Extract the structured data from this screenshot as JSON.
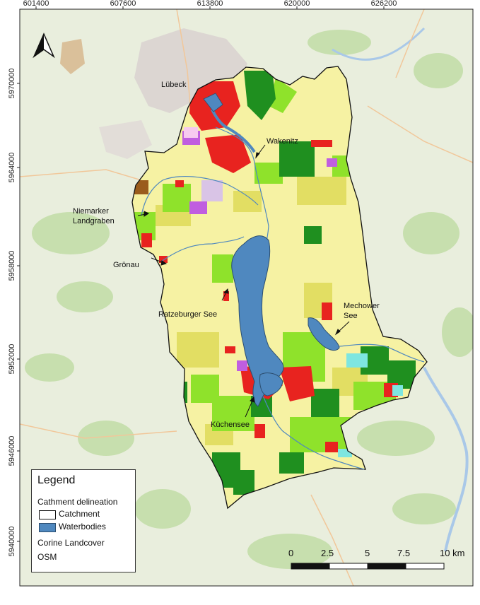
{
  "map": {
    "x_ticks": [
      "601400",
      "607600",
      "613800",
      "620000",
      "626200"
    ],
    "y_ticks": [
      "5970000",
      "5964000",
      "5958000",
      "5952000",
      "5946000",
      "5940000"
    ],
    "north_arrow": "north-arrow-icon",
    "labels": {
      "lubeck": "Lübeck",
      "wakenitz": "Wakenitz",
      "niemarker_line1": "Niemarker",
      "niemarker_line2": "Landgraben",
      "gronau": "Grönau",
      "ratzeburger": "Ratzeburger See",
      "mechower_line1": "Mechower",
      "mechower_line2": "See",
      "kuchensee": "Küchensee"
    },
    "colors": {
      "urban": "#e8231f",
      "forest": "#1f8f1f",
      "grassland": "#8fe22b",
      "arable": "#f6f2a3",
      "heterogeneous": "#e2de63",
      "water": "#4f88bf",
      "osm_background": "#e9eedd"
    }
  },
  "legend": {
    "title": "Legend",
    "group1": "Cathment delineation",
    "catchment": "Catchment",
    "waterbodies": "Waterbodies",
    "corine": "Corine Landcover",
    "osm": "OSM"
  },
  "scalebar": {
    "labels": [
      "0",
      "2.5",
      "5",
      "7.5",
      "10 km"
    ]
  }
}
